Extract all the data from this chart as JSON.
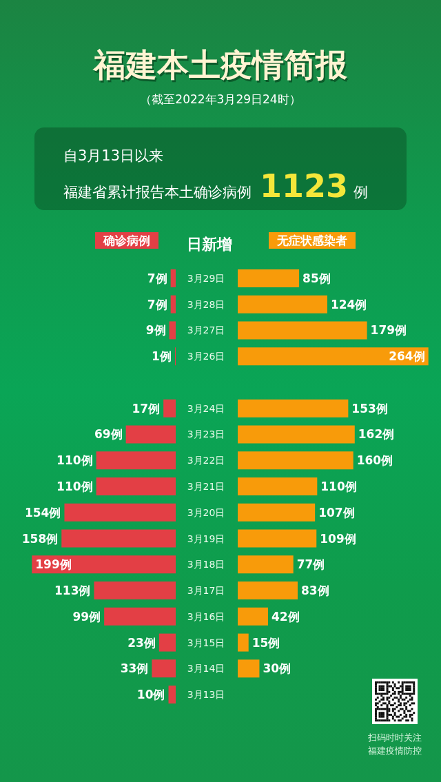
{
  "chart_data": [
    {
      "type": "other",
      "title": "福建本土疫情简报",
      "subtitle": "（截至2022年3月29日24时）",
      "annotations": [
        "自3月13日以来",
        "福建省累计报告本土确诊病例",
        "1123",
        "例"
      ]
    },
    {
      "type": "bar",
      "orientation": "horizontal",
      "categories": [
        "3月29日",
        "3月28日",
        "3月27日",
        "3月26日",
        null,
        "3月24日",
        "3月23日",
        "3月22日",
        "3月21日",
        "3月20日",
        "3月19日",
        "3月18日",
        "3月17日",
        "3月16日",
        "3月15日",
        "3月14日",
        "3月13日"
      ],
      "ylabel": "日新增",
      "series": [
        {
          "name": "确诊病例",
          "color": "#e33f45",
          "values": [
            7,
            7,
            9,
            1,
            null,
            17,
            69,
            110,
            110,
            154,
            158,
            199,
            113,
            99,
            23,
            33,
            10
          ],
          "value_labels": [
            "7例",
            "7例",
            "9例",
            "1例",
            null,
            "17例",
            "69例",
            "110例",
            "110例",
            "154例",
            "158例",
            "199例",
            "113例",
            "99例",
            "23例",
            "33例",
            "10例"
          ]
        }
      ],
      "tick_labels": "y",
      "legend": "top"
    },
    {
      "type": "bar",
      "orientation": "horizontal",
      "categories": [
        null,
        null,
        null,
        null,
        null,
        null,
        null,
        null,
        null,
        null,
        null,
        null,
        null,
        null,
        null,
        null,
        null
      ],
      "series": [
        {
          "name": "无症状感染者",
          "color": "#f89b0a",
          "values": [
            85,
            124,
            179,
            264,
            null,
            153,
            162,
            160,
            110,
            107,
            109,
            77,
            83,
            42,
            15,
            30,
            null
          ],
          "value_labels": [
            "85例",
            "124例",
            "179例",
            "264例",
            null,
            "153例",
            "162例",
            "160例",
            "110例",
            "107例",
            "109例",
            "77例",
            "83例",
            "42例",
            "15例",
            "30例",
            null
          ]
        }
      ],
      "tick_labels": false,
      "legend": "top",
      "annotations": [
        "扫码时时关注",
        "福建疫情防控"
      ]
    }
  ]
}
